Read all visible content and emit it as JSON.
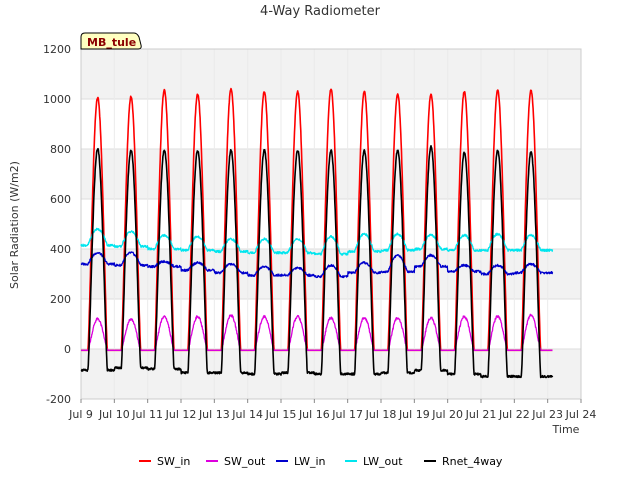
{
  "chart_data": {
    "type": "line",
    "title": "4-Way Radiometer",
    "xlabel": "Time",
    "ylabel": "Solar Radiation (W/m2)",
    "badge": "MB_tule",
    "xlim": [
      9,
      24
    ],
    "ylim": [
      -200,
      1200
    ],
    "x_ticks": [
      9,
      10,
      11,
      12,
      13,
      14,
      15,
      16,
      17,
      18,
      19,
      20,
      21,
      22,
      23,
      24
    ],
    "x_tick_labels": [
      "Jul 9",
      "Jul 10",
      "Jul 11",
      "Jul 12",
      "Jul 13",
      "Jul 14",
      "Jul 15",
      "Jul 16",
      "Jul 17",
      "Jul 18",
      "Jul 19",
      "Jul 20",
      "Jul 21",
      "Jul 22",
      "Jul 23",
      "Jul 24"
    ],
    "y_ticks": [
      -200,
      0,
      200,
      400,
      600,
      800,
      1000,
      1200
    ],
    "y_tick_labels": [
      "-200",
      "0",
      "200",
      "400",
      "600",
      "800",
      "1000",
      "1200"
    ],
    "days": [
      9.25,
      10.25,
      11.25,
      12.25,
      13.25,
      14.25,
      15.25,
      16.25,
      17.25,
      18.25,
      19.25,
      20.25,
      21.25,
      22.25
    ],
    "series": [
      {
        "name": "SW_in",
        "color": "#ff0000",
        "day_peaks": [
          1005,
          1010,
          1035,
          1020,
          1040,
          1030,
          1030,
          1040,
          1030,
          1020,
          1020,
          1030,
          1035,
          1035
        ],
        "night_value": -5
      },
      {
        "name": "SW_out",
        "color": "#dd00dd",
        "day_peaks": [
          120,
          120,
          130,
          130,
          135,
          130,
          130,
          125,
          125,
          125,
          125,
          130,
          130,
          135
        ],
        "night_value": -5
      },
      {
        "name": "LW_in",
        "color": "#0000cc",
        "day_peaks": [
          385,
          385,
          350,
          345,
          340,
          330,
          325,
          335,
          345,
          375,
          375,
          335,
          335,
          340
        ],
        "night_values": [
          340,
          335,
          330,
          315,
          305,
          295,
          295,
          290,
          305,
          310,
          330,
          310,
          300,
          305
        ]
      },
      {
        "name": "LW_out",
        "color": "#00e5ee",
        "day_peaks": [
          480,
          470,
          455,
          450,
          440,
          440,
          440,
          450,
          460,
          460,
          455,
          455,
          460,
          455
        ],
        "night_values": [
          415,
          410,
          400,
          395,
          390,
          385,
          385,
          380,
          390,
          395,
          400,
          395,
          395,
          395
        ]
      },
      {
        "name": "Rnet_4way",
        "color": "#000000",
        "day_peaks": [
          800,
          795,
          795,
          795,
          795,
          795,
          795,
          795,
          795,
          795,
          810,
          785,
          795,
          790
        ],
        "night_values": [
          -85,
          -75,
          -80,
          -95,
          -95,
          -100,
          -95,
          -100,
          -100,
          -95,
          -85,
          -100,
          -110,
          -110
        ]
      }
    ],
    "legend_position": "bottom",
    "grid": true
  }
}
